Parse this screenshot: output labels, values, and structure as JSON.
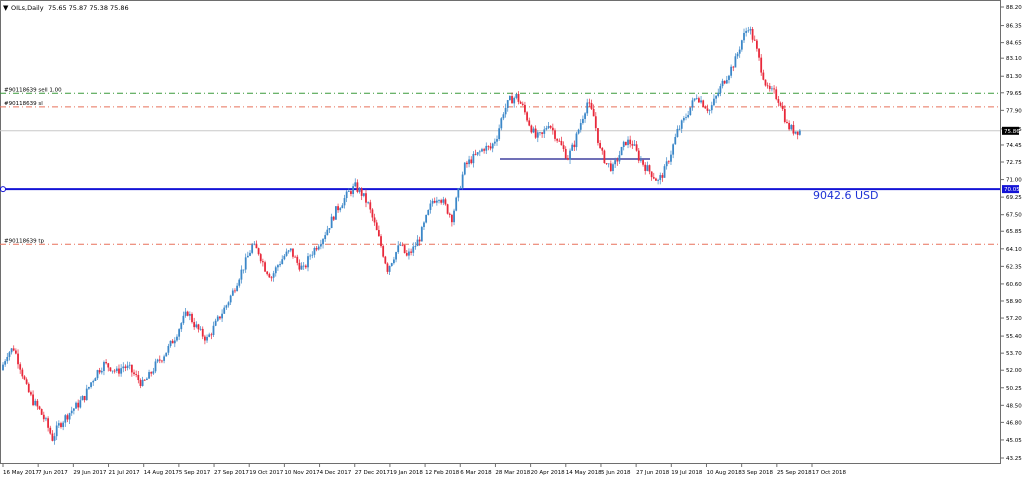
{
  "header": {
    "arrow_glyph": "▼",
    "symbol_timeframe": "OILs,Daily",
    "ohlc": "75.65 75.87 75.38 75.86"
  },
  "levels": {
    "sell_label": "#90118639 sell 1.00",
    "sl_label": "#90118639 sl",
    "tp_label": "#90118639 tp",
    "sell_price": 79.6,
    "sl_price": 78.25,
    "tp_price": 64.55,
    "current_price": 75.86,
    "current_price_label": "75.86",
    "blue_line_price": 70.05,
    "blue_line_label": "70.05",
    "profit_text": "9042.6 USD"
  },
  "colors": {
    "bull": "#3b87c8",
    "bear": "#e8283a",
    "sell_line": "#3a9a3a",
    "sl_tp_line": "#e8705a",
    "blue_line": "#1414d6",
    "current_line": "#c8c8c8",
    "profit_text": "#1e32d6"
  },
  "chart_data": {
    "type": "line",
    "title": "OILs,Daily",
    "ylim": [
      43.25,
      88.2
    ],
    "y_ticks": [
      "88.20",
      "86.35",
      "84.65",
      "83.10",
      "81.30",
      "79.65",
      "77.90",
      "76.05",
      "74.45",
      "72.75",
      "71.00",
      "69.25",
      "67.50",
      "65.85",
      "64.10",
      "62.35",
      "60.60",
      "58.90",
      "57.20",
      "55.40",
      "53.70",
      "52.00",
      "50.25",
      "48.50",
      "46.80",
      "45.05",
      "43.25"
    ],
    "x_ticks": [
      "16 May 2017",
      "7 Jun 2017",
      "29 Jun 2017",
      "21 Jul 2017",
      "14 Aug 2017",
      "5 Sep 2017",
      "27 Sep 2017",
      "19 Oct 2017",
      "10 Nov 2017",
      "4 Dec 2017",
      "27 Dec 2017",
      "19 Jan 2018",
      "12 Feb 2018",
      "6 Mar 2018",
      "28 Mar 2018",
      "20 Apr 2018",
      "14 May 2018",
      "5 Jun 2018",
      "27 Jun 2018",
      "19 Jul 2018",
      "10 Aug 2018",
      "3 Sep 2018",
      "25 Sep 2018",
      "17 Oct 2018"
    ],
    "series": [
      {
        "values": [
          52.0,
          53.7,
          54.2,
          52.4,
          50.2,
          48.9,
          48.0,
          46.8,
          45.2,
          46.5,
          47.3,
          48.0,
          48.6,
          49.4,
          50.8,
          51.9,
          52.6,
          52.3,
          51.8,
          52.4,
          52.1,
          51.3,
          50.6,
          51.4,
          52.5,
          53.3,
          54.2,
          55.3,
          56.7,
          57.8,
          56.6,
          55.7,
          55.1,
          56.2,
          57.4,
          58.5,
          59.8,
          61.4,
          62.8,
          64.4,
          63.8,
          62.2,
          61.3,
          62.5,
          63.4,
          63.9,
          62.7,
          62.0,
          63.5,
          64.4,
          65.3,
          66.5,
          67.9,
          68.8,
          69.7,
          70.3,
          69.6,
          68.5,
          66.5,
          64.4,
          62.1,
          63.4,
          64.5,
          63.3,
          64.1,
          65.2,
          67.1,
          68.9,
          69.4,
          68.3,
          67.2,
          69.7,
          72.3,
          73.0,
          73.5,
          74.2,
          74.1,
          75.4,
          77.8,
          78.9,
          79.3,
          78.2,
          76.6,
          75.2,
          75.4,
          76.7,
          75.5,
          74.3,
          73.2,
          74.6,
          76.7,
          78.7,
          77.3,
          73.9,
          72.6,
          72.1,
          73.5,
          74.8,
          74.6,
          73.2,
          72.3,
          71.6,
          70.8,
          71.9,
          73.7,
          75.8,
          76.9,
          78.2,
          79.4,
          78.6,
          77.9,
          79.2,
          80.6,
          81.7,
          82.9,
          84.9,
          86.3,
          84.6,
          82.1,
          79.9,
          79.6,
          78.7,
          76.4,
          75.9,
          75.86
        ]
      }
    ]
  }
}
